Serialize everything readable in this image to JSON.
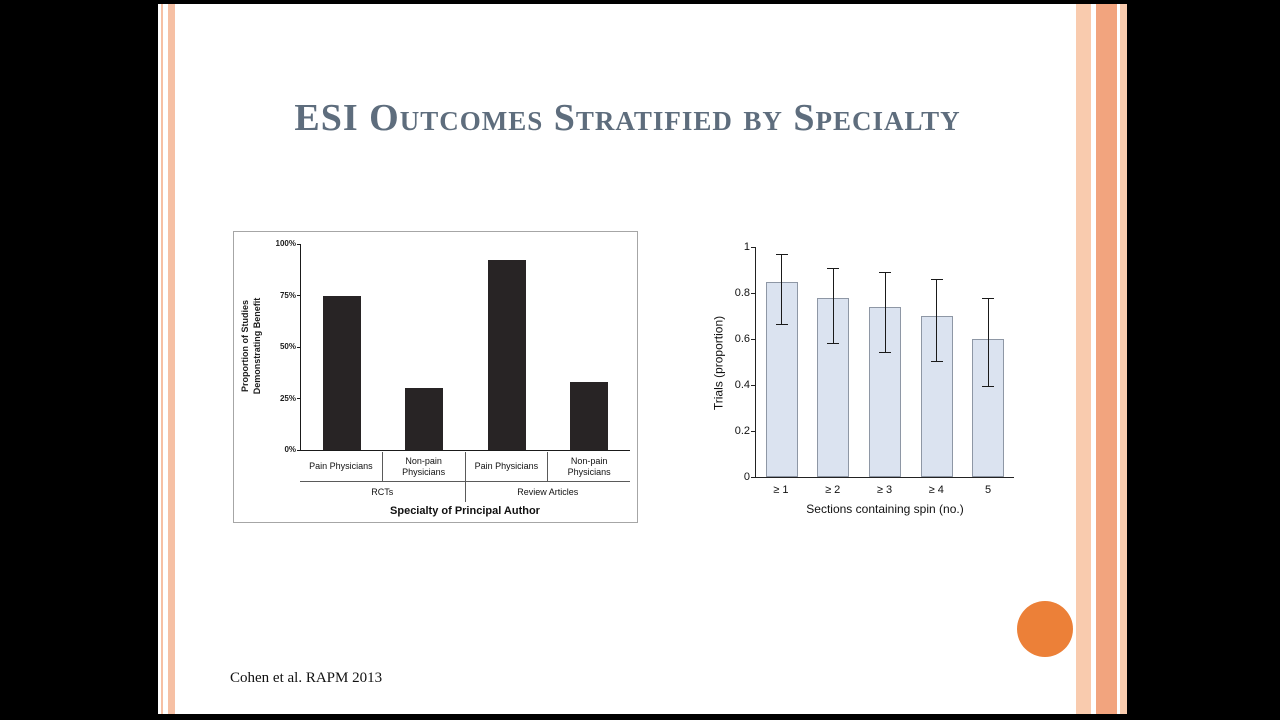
{
  "slide": {
    "title": "ESI Outcomes Stratified by Specialty",
    "citation": "Cohen et al. RAPM 2013",
    "theme": {
      "title_color": "#5e6d7d",
      "accent": "#ec8038",
      "stripe_light": "#f9cbae",
      "stripe_mid": "#f2a47e",
      "background": "#ffffff",
      "frame": "#000000"
    }
  },
  "chart_data": [
    {
      "type": "bar",
      "title": "",
      "categories": [
        "Pain Physicians",
        "Non-pain Physicians",
        "Pain Physicians",
        "Non-pain Physicians"
      ],
      "values": [
        75,
        30,
        92,
        33
      ],
      "group_labels": [
        "RCTs",
        "Review Articles"
      ],
      "ylabel": "Proportion of Studies\nDemonstrating Benefit",
      "xlabel": "Specialty of Principal Author",
      "yticks": [
        "0%",
        "25%",
        "50%",
        "75%",
        "100%"
      ],
      "ylim": [
        0,
        100
      ],
      "bar_color": "#282425",
      "grid": false,
      "legend": "none"
    },
    {
      "type": "bar",
      "title": "",
      "categories": [
        "≥ 1",
        "≥ 2",
        "≥ 3",
        "≥ 4",
        "5"
      ],
      "values": [
        0.85,
        0.78,
        0.74,
        0.7,
        0.6
      ],
      "error_high": [
        0.97,
        0.91,
        0.89,
        0.86,
        0.78
      ],
      "error_low": [
        0.66,
        0.58,
        0.54,
        0.5,
        0.39
      ],
      "ylabel": "Trials (proportion)",
      "xlabel": "Sections containing spin (no.)",
      "yticks": [
        0,
        0.2,
        0.4,
        0.6,
        0.8,
        1
      ],
      "ylim": [
        0,
        1
      ],
      "bar_color": "#dbe3f0",
      "grid": false,
      "legend": "none"
    }
  ]
}
